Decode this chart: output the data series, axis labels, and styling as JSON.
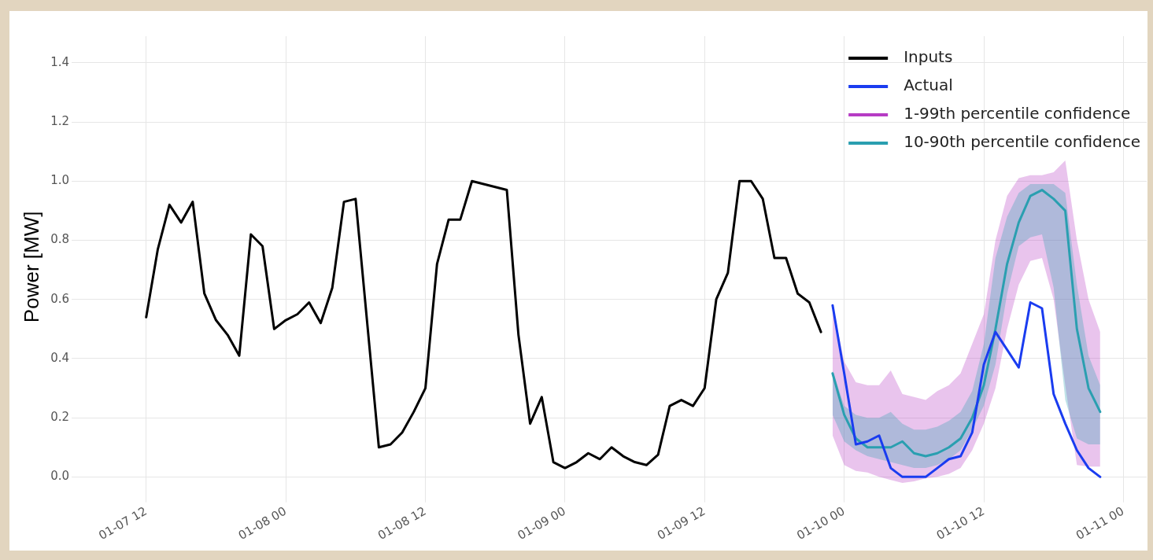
{
  "chart_data": {
    "type": "line",
    "ylabel": "Power [MW]",
    "xlim": [
      "--01-07T06:00",
      "--01-11T02:00"
    ],
    "xticks": [
      {
        "value": "--01-07T12:00",
        "label": "01-07 12"
      },
      {
        "value": "--01-08T00:00",
        "label": "01-08 00"
      },
      {
        "value": "--01-08T12:00",
        "label": "01-08 12"
      },
      {
        "value": "--01-09T00:00",
        "label": "01-09 00"
      },
      {
        "value": "--01-09T12:00",
        "label": "01-09 12"
      },
      {
        "value": "--01-10T00:00",
        "label": "01-10 00"
      },
      {
        "value": "--01-10T12:00",
        "label": "01-10 12"
      },
      {
        "value": "--01-11T00:00",
        "label": "01-11 00"
      }
    ],
    "ylim": [
      -0.07,
      1.49
    ],
    "yticks": [
      {
        "value": 0,
        "label": "0.0"
      },
      {
        "value": 0.2,
        "label": "0.2"
      },
      {
        "value": 0.4,
        "label": "0.4"
      },
      {
        "value": 0.6,
        "label": "0.6"
      },
      {
        "value": 0.8,
        "label": "0.8"
      },
      {
        "value": 1.0,
        "label": "1.0"
      },
      {
        "value": 1.2,
        "label": "1.2"
      },
      {
        "value": 1.4,
        "label": "1.4"
      }
    ],
    "grid": true,
    "legend": "top right",
    "line_style": "solid",
    "series": [
      {
        "name": "Inputs",
        "color": "#000000",
        "x": [
          "--01-07T12:00",
          "--01-07T13:00",
          "--01-07T14:00",
          "--01-07T15:00",
          "--01-07T16:00",
          "--01-07T17:00",
          "--01-07T18:00",
          "--01-07T19:00",
          "--01-07T20:00",
          "--01-07T21:00",
          "--01-07T22:00",
          "--01-07T23:00",
          "--01-08T00:00",
          "--01-08T01:00",
          "--01-08T02:00",
          "--01-08T03:00",
          "--01-08T04:00",
          "--01-08T05:00",
          "--01-08T06:00",
          "--01-08T07:00",
          "--01-08T08:00",
          "--01-08T09:00",
          "--01-08T10:00",
          "--01-08T11:00",
          "--01-08T12:00",
          "--01-08T13:00",
          "--01-08T14:00",
          "--01-08T15:00",
          "--01-08T16:00",
          "--01-08T17:00",
          "--01-08T18:00",
          "--01-08T19:00",
          "--01-08T20:00",
          "--01-08T21:00",
          "--01-08T22:00",
          "--01-08T23:00",
          "--01-09T00:00",
          "--01-09T01:00",
          "--01-09T02:00",
          "--01-09T03:00",
          "--01-09T04:00",
          "--01-09T05:00",
          "--01-09T06:00",
          "--01-09T07:00",
          "--01-09T08:00",
          "--01-09T09:00",
          "--01-09T10:00",
          "--01-09T11:00",
          "--01-09T12:00",
          "--01-09T13:00",
          "--01-09T14:00",
          "--01-09T15:00",
          "--01-09T16:00",
          "--01-09T17:00",
          "--01-09T18:00",
          "--01-09T19:00",
          "--01-09T20:00",
          "--01-09T21:00",
          "--01-09T22:00"
        ],
        "values": [
          0.54,
          0.77,
          0.92,
          0.86,
          0.93,
          0.62,
          0.53,
          0.48,
          0.41,
          0.82,
          0.78,
          0.5,
          0.53,
          0.55,
          0.59,
          0.52,
          0.64,
          0.93,
          0.94,
          0.52,
          0.1,
          0.11,
          0.15,
          0.22,
          0.3,
          0.72,
          0.87,
          0.87,
          1.0,
          0.99,
          0.98,
          0.97,
          0.48,
          0.18,
          0.27,
          0.05,
          0.03,
          0.05,
          0.08,
          0.06,
          0.1,
          0.07,
          0.05,
          0.04,
          0.075,
          0.24,
          0.26,
          0.24,
          0.3,
          0.6,
          0.69,
          1.0,
          1.0,
          0.94,
          0.74,
          0.74,
          0.62,
          0.59,
          0.49
        ]
      },
      {
        "name": "Actual",
        "color": "#1a3cf0",
        "x": [
          "--01-09T23:00",
          "--01-10T00:00",
          "--01-10T01:00",
          "--01-10T02:00",
          "--01-10T03:00",
          "--01-10T04:00",
          "--01-10T05:00",
          "--01-10T06:00",
          "--01-10T07:00",
          "--01-10T08:00",
          "--01-10T09:00",
          "--01-10T10:00",
          "--01-10T11:00",
          "--01-10T12:00",
          "--01-10T13:00",
          "--01-10T14:00",
          "--01-10T15:00",
          "--01-10T16:00",
          "--01-10T17:00",
          "--01-10T18:00",
          "--01-10T19:00",
          "--01-10T20:00",
          "--01-10T21:00",
          "--01-10T22:00"
        ],
        "values": [
          0.58,
          0.35,
          0.11,
          0.12,
          0.14,
          0.03,
          0.0,
          0.0,
          0.0,
          0.03,
          0.06,
          0.07,
          0.15,
          0.38,
          0.49,
          0.43,
          0.37,
          0.59,
          0.57,
          0.28,
          0.18,
          0.09,
          0.03,
          0.0
        ]
      },
      {
        "name": "1-99th percentile confidence",
        "color": "#b63cc4",
        "x": [
          "--01-09T23:00",
          "--01-10T00:00",
          "--01-10T01:00",
          "--01-10T02:00",
          "--01-10T03:00",
          "--01-10T04:00",
          "--01-10T05:00",
          "--01-10T06:00",
          "--01-10T07:00",
          "--01-10T08:00",
          "--01-10T09:00",
          "--01-10T10:00",
          "--01-10T11:00",
          "--01-10T12:00",
          "--01-10T13:00",
          "--01-10T14:00",
          "--01-10T15:00",
          "--01-10T16:00",
          "--01-10T17:00",
          "--01-10T18:00",
          "--01-10T19:00",
          "--01-10T20:00",
          "--01-10T21:00",
          "--01-10T22:00"
        ],
        "values": [
          null,
          null,
          null,
          null,
          null,
          null,
          null,
          null,
          null,
          null,
          null,
          null,
          null,
          null,
          null,
          null,
          null,
          null,
          null,
          null,
          null,
          null,
          null,
          null
        ],
        "lower": [
          0.14,
          0.04,
          0.02,
          0.015,
          0.0,
          -0.01,
          -0.02,
          -0.015,
          -0.005,
          0.0,
          0.01,
          0.03,
          0.09,
          0.18,
          0.3,
          0.5,
          0.65,
          0.73,
          0.74,
          0.6,
          0.31,
          0.04,
          0.035,
          0.035
        ],
        "upper": [
          0.58,
          0.39,
          0.32,
          0.31,
          0.31,
          0.36,
          0.28,
          0.27,
          0.26,
          0.29,
          0.31,
          0.35,
          0.45,
          0.55,
          0.8,
          0.95,
          1.01,
          1.02,
          1.02,
          1.03,
          1.07,
          0.8,
          0.6,
          0.49
        ]
      },
      {
        "name": "10-90th percentile confidence",
        "color": "#2a9fb0",
        "x": [
          "--01-09T23:00",
          "--01-10T00:00",
          "--01-10T01:00",
          "--01-10T02:00",
          "--01-10T03:00",
          "--01-10T04:00",
          "--01-10T05:00",
          "--01-10T06:00",
          "--01-10T07:00",
          "--01-10T08:00",
          "--01-10T09:00",
          "--01-10T10:00",
          "--01-10T11:00",
          "--01-10T12:00",
          "--01-10T13:00",
          "--01-10T14:00",
          "--01-10T15:00",
          "--01-10T16:00",
          "--01-10T17:00",
          "--01-10T18:00",
          "--01-10T19:00",
          "--01-10T20:00",
          "--01-10T21:00",
          "--01-10T22:00"
        ],
        "values": [
          0.35,
          0.21,
          0.13,
          0.1,
          0.1,
          0.1,
          0.12,
          0.08,
          0.07,
          0.08,
          0.1,
          0.13,
          0.2,
          0.31,
          0.5,
          0.72,
          0.86,
          0.95,
          0.97,
          0.94,
          0.9,
          0.5,
          0.3,
          0.22
        ],
        "lower": [
          0.21,
          0.12,
          0.09,
          0.07,
          0.06,
          0.05,
          0.04,
          0.03,
          0.03,
          0.04,
          0.06,
          0.09,
          0.16,
          0.24,
          0.38,
          0.62,
          0.78,
          0.81,
          0.82,
          0.64,
          0.26,
          0.13,
          0.11,
          0.11
        ],
        "upper": [
          0.36,
          0.24,
          0.21,
          0.2,
          0.2,
          0.22,
          0.18,
          0.16,
          0.16,
          0.17,
          0.19,
          0.22,
          0.29,
          0.45,
          0.74,
          0.88,
          0.96,
          0.99,
          0.99,
          0.99,
          0.96,
          0.65,
          0.41,
          0.31
        ]
      }
    ]
  }
}
